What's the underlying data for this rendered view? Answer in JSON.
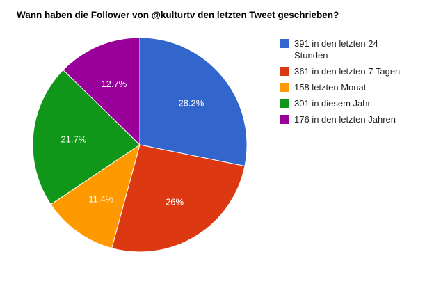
{
  "chart_data": {
    "type": "pie",
    "title": "Wann haben die Follower von @kulturtv den letzten Tweet geschrieben?",
    "legend_position": "right",
    "slices": [
      {
        "legend": [
          "391 in den letzten 24",
          "Stunden"
        ],
        "value": 391,
        "label": "28.2%",
        "color": "#3366cc"
      },
      {
        "legend": [
          "361 in den letzten 7 Tagen"
        ],
        "value": 361,
        "label": "26%",
        "color": "#dc3912"
      },
      {
        "legend": [
          "158 letzten Monat"
        ],
        "value": 158,
        "label": "11.4%",
        "color": "#ff9900"
      },
      {
        "legend": [
          "301 in diesem Jahr"
        ],
        "value": 301,
        "label": "21.7%",
        "color": "#109618"
      },
      {
        "legend": [
          "176 in den letzten Jahren"
        ],
        "value": 176,
        "label": "12.7%",
        "color": "#990099"
      }
    ]
  }
}
